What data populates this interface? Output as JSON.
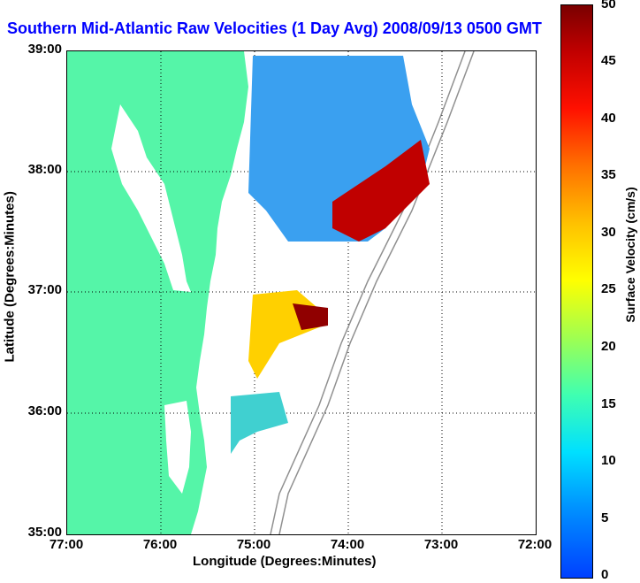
{
  "title": "Southern Mid-Atlantic Raw Velocities (1 Day Avg) 2008/09/13 0500 GMT",
  "x_axis": {
    "title": "Longitude (Degrees:Minutes)",
    "ticks": [
      "77:00",
      "76:00",
      "75:00",
      "74:00",
      "73:00",
      "72:00"
    ]
  },
  "y_axis": {
    "title": "Latitude (Degrees:Minutes)",
    "ticks": [
      "39:00",
      "38:00",
      "37:00",
      "36:00",
      "35:00"
    ]
  },
  "colorbar": {
    "title": "Surface Velocity (cm/s)",
    "ticks": [
      "50",
      "45",
      "40",
      "35",
      "30",
      "25",
      "20",
      "15",
      "10",
      "5",
      "0"
    ]
  },
  "colors": {
    "land": "#55f5a8",
    "title": "#0000ff",
    "bathymetry": "#909090"
  }
}
